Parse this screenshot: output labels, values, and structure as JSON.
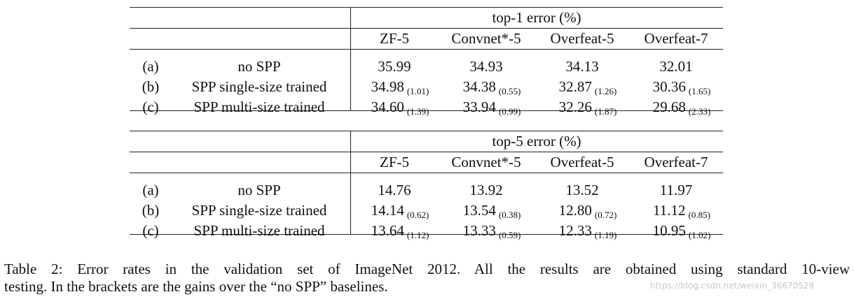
{
  "tables": [
    {
      "header": "top-1 error (%)",
      "columns": [
        "ZF-5",
        "Convnet*-5",
        "Overfeat-5",
        "Overfeat-7"
      ],
      "rows": [
        {
          "label": "(a)",
          "method": "no SPP",
          "cells": [
            {
              "value": "35.99"
            },
            {
              "value": "34.93"
            },
            {
              "value": "34.13"
            },
            {
              "value": "32.01"
            }
          ]
        },
        {
          "label": "(b)",
          "method": "SPP single-size trained",
          "cells": [
            {
              "value": "34.98",
              "gain": "(1.01)"
            },
            {
              "value": "34.38",
              "gain": "(0.55)"
            },
            {
              "value": "32.87",
              "gain": "(1.26)"
            },
            {
              "value": "30.36",
              "gain": "(1.65)"
            }
          ]
        },
        {
          "label": "(c)",
          "method": "SPP multi-size trained",
          "cells": [
            {
              "value": "34.60",
              "gain": "(1.39)"
            },
            {
              "value": "33.94",
              "gain": "(0.99)"
            },
            {
              "value": "32.26",
              "gain": "(1.87)"
            },
            {
              "value": "29.68",
              "gain": "(2.33)"
            }
          ]
        }
      ]
    },
    {
      "header": "top-5 error (%)",
      "columns": [
        "ZF-5",
        "Convnet*-5",
        "Overfeat-5",
        "Overfeat-7"
      ],
      "rows": [
        {
          "label": "(a)",
          "method": "no SPP",
          "cells": [
            {
              "value": "14.76"
            },
            {
              "value": "13.92"
            },
            {
              "value": "13.52"
            },
            {
              "value": "11.97"
            }
          ]
        },
        {
          "label": "(b)",
          "method": "SPP single-size trained",
          "cells": [
            {
              "value": "14.14",
              "gain": "(0.62)"
            },
            {
              "value": "13.54",
              "gain": "(0.38)"
            },
            {
              "value": "12.80",
              "gain": "(0.72)"
            },
            {
              "value": "11.12",
              "gain": "(0.85)"
            }
          ]
        },
        {
          "label": "(c)",
          "method": "SPP multi-size trained",
          "cells": [
            {
              "value": "13.64",
              "gain": "(1.12)"
            },
            {
              "value": "13.33",
              "gain": "(0.59)"
            },
            {
              "value": "12.33",
              "gain": "(1.19)"
            },
            {
              "value": "10.95",
              "gain": "(1.02)"
            }
          ]
        }
      ]
    }
  ],
  "caption": {
    "lines": [
      "Table 2: Error rates in the validation set of ImageNet 2012. All the results are obtained using standard 10-view",
      "testing. In the brackets are the gains over the “no SPP” baselines."
    ]
  },
  "watermark": "https://blog.csdn.net/weixin_36670529"
}
